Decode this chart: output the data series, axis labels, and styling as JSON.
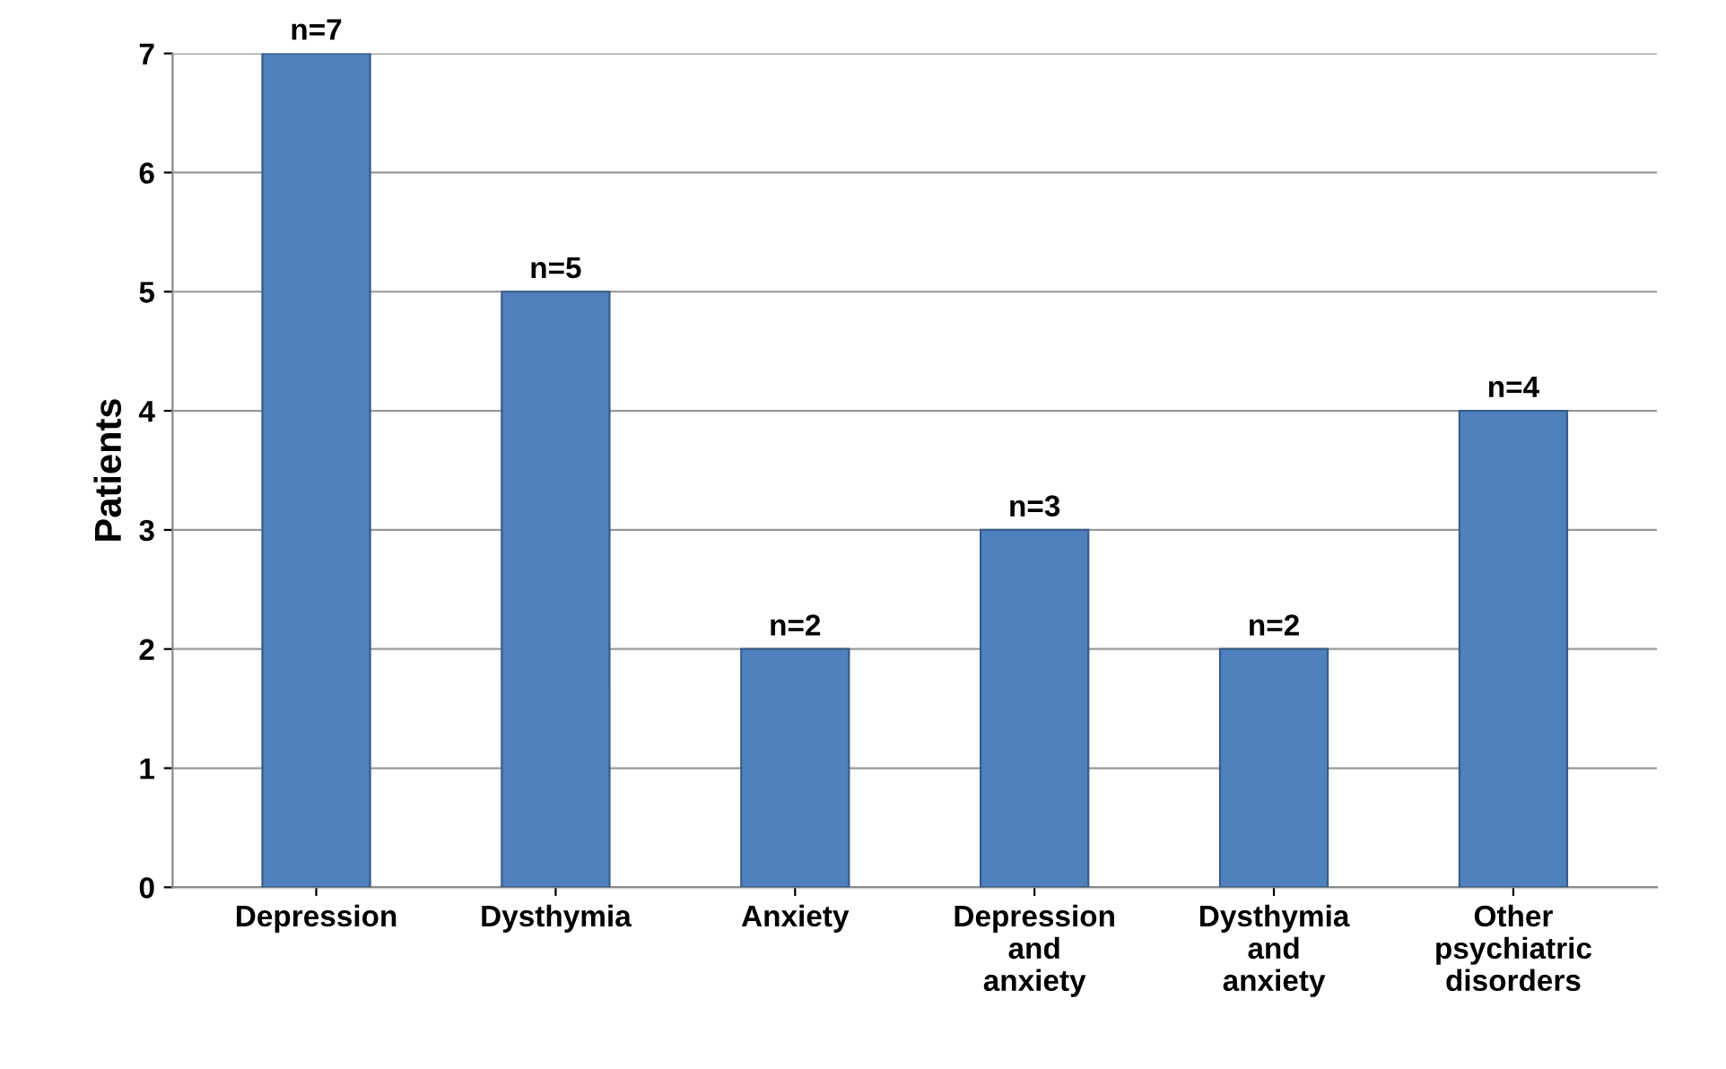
{
  "chart_data": {
    "type": "bar",
    "ylabel": "Patients",
    "categories": [
      "Depression",
      "Dysthymia",
      "Anxiety",
      "Depression\nand\nanxiety",
      "Dysthymia\nand\nanxiety",
      "Other\npsychiatric\ndisorders"
    ],
    "values": [
      7,
      5,
      2,
      3,
      2,
      4
    ],
    "value_labels": [
      "n=7",
      "n=5",
      "n=2",
      "n=3",
      "n=2",
      "n=4"
    ],
    "color": "#4f81bd",
    "ylim": [
      0,
      7
    ],
    "yticks": [
      0,
      1,
      2,
      3,
      4,
      5,
      6,
      7
    ],
    "grid": "y"
  }
}
